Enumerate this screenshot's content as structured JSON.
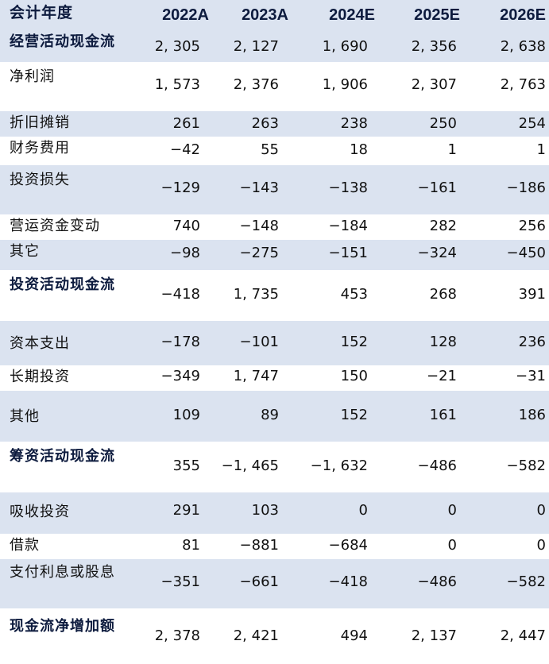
{
  "header": {
    "label": "会计年度",
    "years": [
      "2022A",
      "2023A",
      "2024E",
      "2025E",
      "2026E"
    ]
  },
  "rows": [
    {
      "label": "经营活动现金流",
      "bold": true,
      "values": [
        "2, 305",
        "2, 127",
        "1, 690",
        "2, 356",
        "2, 638"
      ]
    },
    {
      "label": "净利润",
      "bold": false,
      "values": [
        "1, 573",
        "2, 376",
        "1, 906",
        "2, 307",
        "2, 763"
      ]
    },
    {
      "label": "折旧摊销",
      "bold": false,
      "values": [
        "261",
        "263",
        "238",
        "250",
        "254"
      ]
    },
    {
      "label": "财务费用",
      "bold": false,
      "values": [
        "−42",
        "55",
        "18",
        "1",
        "1"
      ]
    },
    {
      "label": "投资损失",
      "bold": false,
      "values": [
        "−129",
        "−143",
        "−138",
        "−161",
        "−186"
      ]
    },
    {
      "label": "营运资金变动",
      "bold": false,
      "values": [
        "740",
        "−148",
        "−184",
        "282",
        "256"
      ]
    },
    {
      "label": "其它",
      "bold": false,
      "values": [
        "−98",
        "−275",
        "−151",
        "−324",
        "−450"
      ]
    },
    {
      "label": "投资活动现金流",
      "bold": true,
      "values": [
        "−418",
        "1, 735",
        "453",
        "268",
        "391"
      ]
    },
    {
      "label": "资本支出",
      "bold": false,
      "values": [
        "−178",
        "−101",
        "152",
        "128",
        "236"
      ]
    },
    {
      "label": "长期投资",
      "bold": false,
      "values": [
        "−349",
        "1, 747",
        "150",
        "−21",
        "−31"
      ]
    },
    {
      "label": "其他",
      "bold": false,
      "values": [
        "109",
        "89",
        "152",
        "161",
        "186"
      ]
    },
    {
      "label": "筹资活动现金流",
      "bold": true,
      "values": [
        "355",
        "−1, 465",
        "−1, 632",
        "−486",
        "−582"
      ]
    },
    {
      "label": "吸收投资",
      "bold": false,
      "values": [
        "291",
        "103",
        "0",
        "0",
        "0"
      ]
    },
    {
      "label": "借款",
      "bold": false,
      "values": [
        "81",
        "−881",
        "−684",
        "0",
        "0"
      ]
    },
    {
      "label": "支付利息或股息",
      "bold": false,
      "values": [
        "−351",
        "−661",
        "−418",
        "−486",
        "−582"
      ]
    },
    {
      "label": "现金流净增加额",
      "bold": true,
      "values": [
        "2, 378",
        "2, 421",
        "494",
        "2, 137",
        "2, 447"
      ]
    }
  ]
}
